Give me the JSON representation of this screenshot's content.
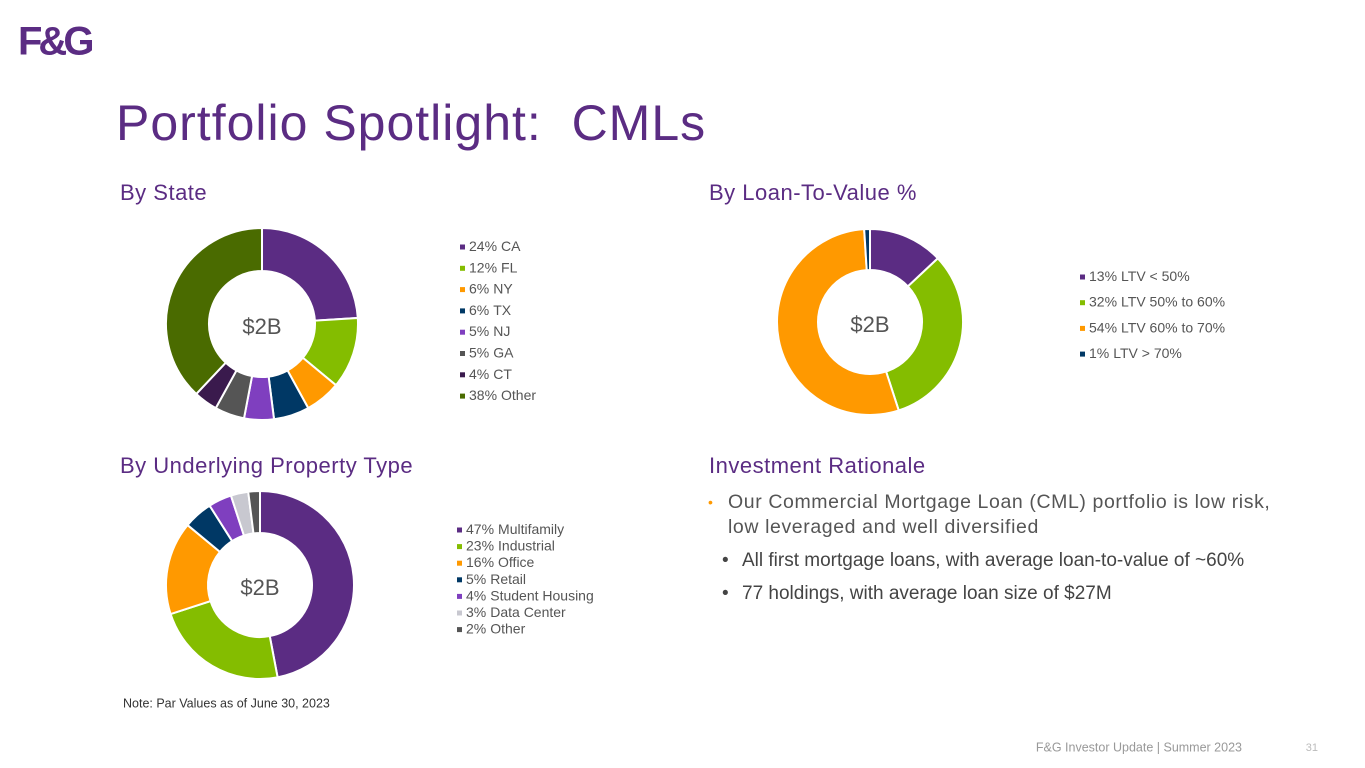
{
  "logo": "F&G",
  "title": "Portfolio Spotlight:  CMLs",
  "chart_data": [
    {
      "type": "donut",
      "title": "By State",
      "center_label": "$2B",
      "categories": [
        "CA",
        "FL",
        "NY",
        "TX",
        "NJ",
        "GA",
        "CT",
        "Other"
      ],
      "values": [
        24,
        12,
        6,
        6,
        5,
        5,
        4,
        38
      ],
      "value_labels": [
        "24%",
        "12%",
        "6%",
        "6%",
        "5%",
        "5%",
        "4%",
        "38%"
      ],
      "colors": [
        "#5b2c83",
        "#84bd00",
        "#ff9900",
        "#003865",
        "#7f3fbf",
        "#555555",
        "#3a1a4d",
        "#4a6b00"
      ]
    },
    {
      "type": "donut",
      "title": "By Loan-To-Value %",
      "center_label": "$2B",
      "categories": [
        "LTV < 50%",
        "LTV 50% to 60%",
        "LTV 60% to 70%",
        "LTV > 70%"
      ],
      "values": [
        13,
        32,
        54,
        1
      ],
      "value_labels": [
        "13%",
        "32%",
        "54%",
        "1%"
      ],
      "colors": [
        "#5b2c83",
        "#84bd00",
        "#ff9900",
        "#003865"
      ]
    },
    {
      "type": "donut",
      "title": "By Underlying Property Type",
      "center_label": "$2B",
      "categories": [
        "Multifamily",
        "Industrial",
        "Office",
        "Retail",
        "Student Housing",
        "Data Center",
        "Other"
      ],
      "values": [
        47,
        23,
        16,
        5,
        4,
        3,
        2
      ],
      "value_labels": [
        "47%",
        "23%",
        "16%",
        "5%",
        "4%",
        "3%",
        "2%"
      ],
      "colors": [
        "#5b2c83",
        "#84bd00",
        "#ff9900",
        "#003865",
        "#7f3fbf",
        "#c8c8d0",
        "#555555"
      ]
    }
  ],
  "rationale": {
    "title": "Investment Rationale",
    "bullets": [
      "Our Commercial Mortgage Loan (CML) portfolio is low risk, low leveraged and well diversified"
    ],
    "sub_bullets": [
      "All first mortgage loans, with average loan-to-value of ~60%",
      "77 holdings, with average loan size of $27M"
    ]
  },
  "note": "Note: Par Values as of June 30, 2023",
  "footer": "F&G Investor Update | Summer 2023",
  "page_number": 31
}
